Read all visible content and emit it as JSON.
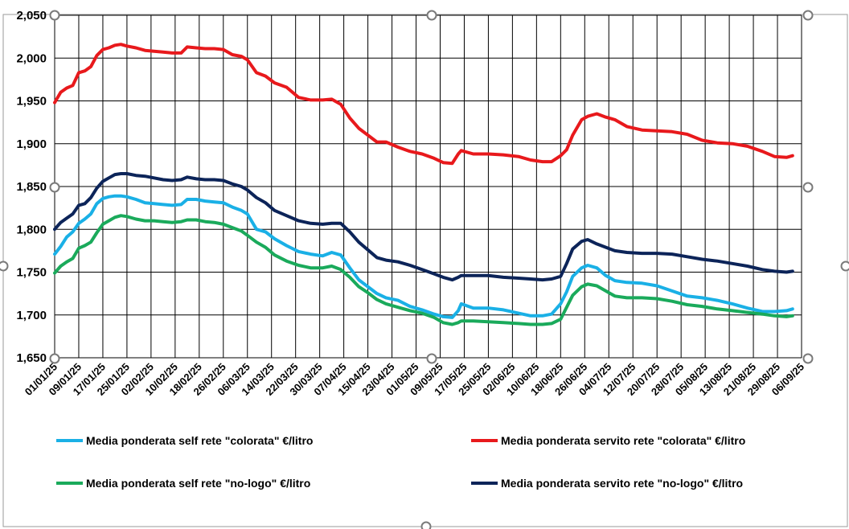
{
  "chart_data": {
    "type": "line",
    "ylim": [
      1.65,
      2.05
    ],
    "y_ticks": [
      "1,650",
      "1,700",
      "1,750",
      "1,800",
      "1,850",
      "1,900",
      "1,950",
      "2,000",
      "2,050"
    ],
    "x_ticks": [
      "01/01/25",
      "09/01/25",
      "17/01/25",
      "25/01/25",
      "02/02/25",
      "10/02/25",
      "18/02/25",
      "26/02/25",
      "06/03/25",
      "14/03/25",
      "22/03/25",
      "30/03/25",
      "07/04/25",
      "15/04/25",
      "23/04/25",
      "01/05/25",
      "09/05/25",
      "17/05/25",
      "25/05/25",
      "02/06/25",
      "10/06/25",
      "18/06/25",
      "26/06/25",
      "04/07/25",
      "12/07/25",
      "20/07/25",
      "28/07/25",
      "05/08/25",
      "13/08/25",
      "21/08/25",
      "29/08/25",
      "06/09/25"
    ],
    "x_start": "2025-01-01",
    "x_end": "2025-09-06",
    "grid": true,
    "legend_position": "bottom",
    "series": [
      {
        "name": "Media ponderata self rete \"colorata\" €/litro",
        "color": "#1ab0e6",
        "x": [
          "2025-01-01",
          "2025-01-03",
          "2025-01-05",
          "2025-01-07",
          "2025-01-09",
          "2025-01-11",
          "2025-01-13",
          "2025-01-15",
          "2025-01-17",
          "2025-01-19",
          "2025-01-21",
          "2025-01-23",
          "2025-01-25",
          "2025-01-28",
          "2025-01-31",
          "2025-02-03",
          "2025-02-06",
          "2025-02-09",
          "2025-02-12",
          "2025-02-14",
          "2025-02-17",
          "2025-02-20",
          "2025-02-23",
          "2025-02-26",
          "2025-03-01",
          "2025-03-04",
          "2025-03-06",
          "2025-03-09",
          "2025-03-12",
          "2025-03-15",
          "2025-03-19",
          "2025-03-23",
          "2025-03-27",
          "2025-03-31",
          "2025-04-03",
          "2025-04-06",
          "2025-04-09",
          "2025-04-12",
          "2025-04-15",
          "2025-04-18",
          "2025-04-21",
          "2025-04-25",
          "2025-04-29",
          "2025-05-03",
          "2025-05-07",
          "2025-05-10",
          "2025-05-13",
          "2025-05-15",
          "2025-05-16",
          "2025-05-20",
          "2025-05-25",
          "2025-05-30",
          "2025-06-04",
          "2025-06-08",
          "2025-06-12",
          "2025-06-15",
          "2025-06-18",
          "2025-06-20",
          "2025-06-22",
          "2025-06-25",
          "2025-06-27",
          "2025-06-30",
          "2025-07-03",
          "2025-07-06",
          "2025-07-10",
          "2025-07-15",
          "2025-07-20",
          "2025-07-25",
          "2025-07-30",
          "2025-08-04",
          "2025-08-09",
          "2025-08-14",
          "2025-08-19",
          "2025-08-24",
          "2025-08-28",
          "2025-09-01",
          "2025-09-03"
        ],
        "y": [
          1.771,
          1.78,
          1.791,
          1.797,
          1.807,
          1.812,
          1.818,
          1.83,
          1.836,
          1.838,
          1.839,
          1.839,
          1.838,
          1.835,
          1.831,
          1.83,
          1.829,
          1.828,
          1.829,
          1.835,
          1.835,
          1.833,
          1.832,
          1.831,
          1.826,
          1.822,
          1.818,
          1.8,
          1.797,
          1.789,
          1.781,
          1.774,
          1.771,
          1.769,
          1.773,
          1.77,
          1.755,
          1.741,
          1.733,
          1.725,
          1.72,
          1.717,
          1.71,
          1.706,
          1.701,
          1.698,
          1.697,
          1.705,
          1.713,
          1.708,
          1.708,
          1.706,
          1.702,
          1.699,
          1.699,
          1.701,
          1.713,
          1.727,
          1.745,
          1.755,
          1.758,
          1.755,
          1.746,
          1.74,
          1.738,
          1.737,
          1.734,
          1.728,
          1.722,
          1.72,
          1.717,
          1.713,
          1.708,
          1.704,
          1.704,
          1.705,
          1.707
        ]
      },
      {
        "name": "Media ponderata servito rete \"colorata\" €/litro",
        "color": "#e8191c",
        "x": [
          "2025-01-01",
          "2025-01-03",
          "2025-01-05",
          "2025-01-07",
          "2025-01-09",
          "2025-01-11",
          "2025-01-13",
          "2025-01-15",
          "2025-01-17",
          "2025-01-19",
          "2025-01-21",
          "2025-01-23",
          "2025-01-25",
          "2025-01-28",
          "2025-01-31",
          "2025-02-03",
          "2025-02-06",
          "2025-02-09",
          "2025-02-12",
          "2025-02-14",
          "2025-02-17",
          "2025-02-20",
          "2025-02-23",
          "2025-02-26",
          "2025-03-01",
          "2025-03-04",
          "2025-03-06",
          "2025-03-09",
          "2025-03-12",
          "2025-03-15",
          "2025-03-19",
          "2025-03-23",
          "2025-03-27",
          "2025-03-31",
          "2025-04-03",
          "2025-04-06",
          "2025-04-09",
          "2025-04-12",
          "2025-04-15",
          "2025-04-18",
          "2025-04-21",
          "2025-04-25",
          "2025-04-29",
          "2025-05-03",
          "2025-05-07",
          "2025-05-10",
          "2025-05-13",
          "2025-05-15",
          "2025-05-16",
          "2025-05-20",
          "2025-05-25",
          "2025-05-30",
          "2025-06-04",
          "2025-06-08",
          "2025-06-12",
          "2025-06-15",
          "2025-06-18",
          "2025-06-20",
          "2025-06-22",
          "2025-06-25",
          "2025-06-27",
          "2025-06-30",
          "2025-07-03",
          "2025-07-06",
          "2025-07-10",
          "2025-07-15",
          "2025-07-20",
          "2025-07-25",
          "2025-07-30",
          "2025-08-04",
          "2025-08-09",
          "2025-08-14",
          "2025-08-19",
          "2025-08-24",
          "2025-08-28",
          "2025-09-01",
          "2025-09-03"
        ],
        "y": [
          1.948,
          1.96,
          1.965,
          1.968,
          1.983,
          1.985,
          1.99,
          2.003,
          2.01,
          2.012,
          2.015,
          2.016,
          2.014,
          2.012,
          2.009,
          2.008,
          2.007,
          2.006,
          2.006,
          2.013,
          2.012,
          2.011,
          2.011,
          2.01,
          2.004,
          2.002,
          1.998,
          1.983,
          1.979,
          1.971,
          1.966,
          1.954,
          1.951,
          1.951,
          1.952,
          1.946,
          1.93,
          1.918,
          1.91,
          1.902,
          1.902,
          1.896,
          1.891,
          1.888,
          1.883,
          1.878,
          1.877,
          1.888,
          1.892,
          1.888,
          1.888,
          1.887,
          1.885,
          1.881,
          1.879,
          1.879,
          1.886,
          1.893,
          1.91,
          1.928,
          1.932,
          1.935,
          1.931,
          1.928,
          1.92,
          1.916,
          1.915,
          1.914,
          1.911,
          1.904,
          1.901,
          1.9,
          1.897,
          1.891,
          1.885,
          1.884,
          1.886
        ]
      },
      {
        "name": "Media ponderata self rete \"no-logo\" €/litro",
        "color": "#1aaa5b",
        "x": [
          "2025-01-01",
          "2025-01-03",
          "2025-01-05",
          "2025-01-07",
          "2025-01-09",
          "2025-01-11",
          "2025-01-13",
          "2025-01-15",
          "2025-01-17",
          "2025-01-19",
          "2025-01-21",
          "2025-01-23",
          "2025-01-25",
          "2025-01-28",
          "2025-01-31",
          "2025-02-03",
          "2025-02-06",
          "2025-02-09",
          "2025-02-12",
          "2025-02-14",
          "2025-02-17",
          "2025-02-20",
          "2025-02-23",
          "2025-02-26",
          "2025-03-01",
          "2025-03-04",
          "2025-03-06",
          "2025-03-09",
          "2025-03-12",
          "2025-03-15",
          "2025-03-19",
          "2025-03-23",
          "2025-03-27",
          "2025-03-31",
          "2025-04-03",
          "2025-04-06",
          "2025-04-09",
          "2025-04-12",
          "2025-04-15",
          "2025-04-18",
          "2025-04-21",
          "2025-04-25",
          "2025-04-29",
          "2025-05-03",
          "2025-05-07",
          "2025-05-10",
          "2025-05-13",
          "2025-05-15",
          "2025-05-16",
          "2025-05-20",
          "2025-05-25",
          "2025-05-30",
          "2025-06-04",
          "2025-06-08",
          "2025-06-12",
          "2025-06-15",
          "2025-06-18",
          "2025-06-20",
          "2025-06-22",
          "2025-06-25",
          "2025-06-27",
          "2025-06-30",
          "2025-07-03",
          "2025-07-06",
          "2025-07-10",
          "2025-07-15",
          "2025-07-20",
          "2025-07-25",
          "2025-07-30",
          "2025-08-04",
          "2025-08-09",
          "2025-08-14",
          "2025-08-19",
          "2025-08-24",
          "2025-08-28",
          "2025-09-01",
          "2025-09-03"
        ],
        "y": [
          1.749,
          1.757,
          1.762,
          1.766,
          1.778,
          1.781,
          1.785,
          1.796,
          1.806,
          1.81,
          1.814,
          1.816,
          1.815,
          1.812,
          1.81,
          1.81,
          1.809,
          1.808,
          1.809,
          1.811,
          1.811,
          1.809,
          1.808,
          1.806,
          1.802,
          1.798,
          1.793,
          1.785,
          1.779,
          1.77,
          1.763,
          1.758,
          1.755,
          1.755,
          1.757,
          1.753,
          1.744,
          1.733,
          1.726,
          1.718,
          1.713,
          1.709,
          1.705,
          1.702,
          1.697,
          1.691,
          1.689,
          1.691,
          1.693,
          1.693,
          1.692,
          1.691,
          1.69,
          1.689,
          1.689,
          1.69,
          1.695,
          1.709,
          1.723,
          1.733,
          1.736,
          1.734,
          1.728,
          1.722,
          1.72,
          1.72,
          1.719,
          1.716,
          1.712,
          1.71,
          1.707,
          1.705,
          1.703,
          1.701,
          1.699,
          1.698,
          1.699
        ]
      },
      {
        "name": "Media ponderata servito rete \"no-logo\" €/litro",
        "color": "#0c2459",
        "x": [
          "2025-01-01",
          "2025-01-03",
          "2025-01-05",
          "2025-01-07",
          "2025-01-09",
          "2025-01-11",
          "2025-01-13",
          "2025-01-15",
          "2025-01-17",
          "2025-01-19",
          "2025-01-21",
          "2025-01-23",
          "2025-01-25",
          "2025-01-28",
          "2025-01-31",
          "2025-02-03",
          "2025-02-06",
          "2025-02-09",
          "2025-02-12",
          "2025-02-14",
          "2025-02-17",
          "2025-02-20",
          "2025-02-23",
          "2025-02-26",
          "2025-03-01",
          "2025-03-04",
          "2025-03-06",
          "2025-03-09",
          "2025-03-12",
          "2025-03-15",
          "2025-03-19",
          "2025-03-23",
          "2025-03-27",
          "2025-03-31",
          "2025-04-03",
          "2025-04-06",
          "2025-04-09",
          "2025-04-12",
          "2025-04-15",
          "2025-04-18",
          "2025-04-21",
          "2025-04-25",
          "2025-04-29",
          "2025-05-03",
          "2025-05-07",
          "2025-05-10",
          "2025-05-13",
          "2025-05-15",
          "2025-05-16",
          "2025-05-20",
          "2025-05-25",
          "2025-05-30",
          "2025-06-04",
          "2025-06-08",
          "2025-06-12",
          "2025-06-15",
          "2025-06-18",
          "2025-06-20",
          "2025-06-22",
          "2025-06-25",
          "2025-06-27",
          "2025-06-30",
          "2025-07-03",
          "2025-07-06",
          "2025-07-10",
          "2025-07-15",
          "2025-07-20",
          "2025-07-25",
          "2025-07-30",
          "2025-08-04",
          "2025-08-09",
          "2025-08-14",
          "2025-08-19",
          "2025-08-24",
          "2025-08-28",
          "2025-09-01",
          "2025-09-03"
        ],
        "y": [
          1.8,
          1.808,
          1.813,
          1.818,
          1.828,
          1.83,
          1.837,
          1.848,
          1.856,
          1.86,
          1.864,
          1.865,
          1.865,
          1.863,
          1.862,
          1.86,
          1.858,
          1.857,
          1.858,
          1.861,
          1.859,
          1.858,
          1.858,
          1.857,
          1.853,
          1.85,
          1.846,
          1.837,
          1.831,
          1.822,
          1.816,
          1.81,
          1.807,
          1.806,
          1.807,
          1.807,
          1.797,
          1.785,
          1.776,
          1.767,
          1.764,
          1.762,
          1.758,
          1.753,
          1.748,
          1.744,
          1.741,
          1.744,
          1.746,
          1.746,
          1.746,
          1.744,
          1.743,
          1.742,
          1.741,
          1.742,
          1.745,
          1.76,
          1.777,
          1.786,
          1.788,
          1.783,
          1.779,
          1.775,
          1.773,
          1.772,
          1.772,
          1.771,
          1.768,
          1.765,
          1.763,
          1.76,
          1.757,
          1.753,
          1.751,
          1.75,
          1.751
        ]
      }
    ]
  }
}
